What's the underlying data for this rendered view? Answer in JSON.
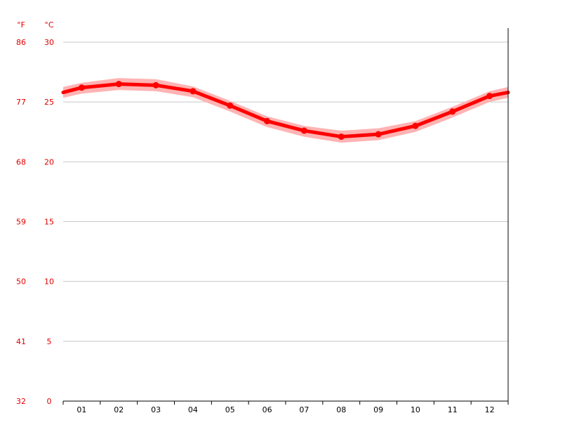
{
  "chart_data": {
    "type": "line",
    "categories": [
      "01",
      "02",
      "03",
      "04",
      "05",
      "06",
      "07",
      "08",
      "09",
      "10",
      "11",
      "12"
    ],
    "series": [
      {
        "values": [
          26.2,
          26.5,
          26.4,
          25.9,
          24.7,
          23.4,
          22.6,
          22.1,
          22.3,
          23.0,
          24.2,
          25.5
        ]
      }
    ],
    "band": {
      "upper": [
        26.6,
        27.0,
        26.9,
        26.3,
        25.1,
        23.8,
        23.0,
        22.6,
        22.8,
        23.4,
        24.6,
        25.9
      ],
      "lower": [
        25.7,
        26.0,
        25.9,
        25.4,
        24.2,
        22.9,
        22.1,
        21.6,
        21.8,
        22.5,
        23.7,
        25.0
      ]
    },
    "edge_values": {
      "left": 25.8,
      "right": 25.8
    },
    "ylim": [
      0,
      30
    ],
    "y_ticks_c": [
      "0",
      "5",
      "10",
      "15",
      "20",
      "25",
      "30"
    ],
    "y_ticks_f": [
      "32",
      "41",
      "50",
      "59",
      "68",
      "77",
      "86"
    ],
    "unit_f": "°F",
    "unit_c": "°C",
    "grid": true,
    "colors": {
      "line": "#ff0000",
      "band": "#ffb3b3",
      "axis_text": "#e00000",
      "grid": "#c8c8c8",
      "axis": "#000000"
    }
  }
}
